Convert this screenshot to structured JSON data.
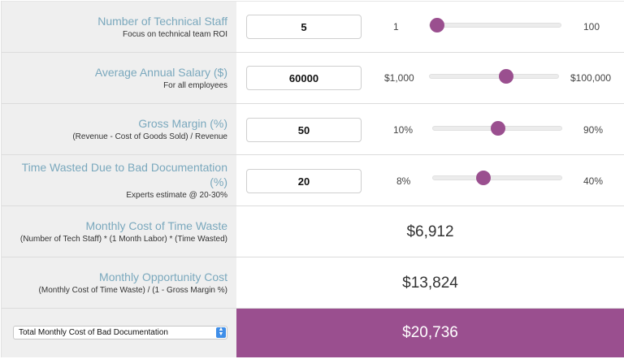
{
  "inputs": [
    {
      "title": "Number of Technical Staff",
      "subtitle": "Focus on technical team ROI",
      "value": "5",
      "min_label": "1",
      "max_label": "100",
      "slider_fraction": 0.0
    },
    {
      "title": "Average Annual Salary ($)",
      "subtitle": "For all employees",
      "value": "60000",
      "min_label": "$1,000",
      "max_label": "$100,000",
      "slider_fraction": 0.6
    },
    {
      "title": "Gross Margin (%)",
      "subtitle": "(Revenue - Cost of Goods Sold) / Revenue",
      "value": "50",
      "min_label": "10%",
      "max_label": "90%",
      "slider_fraction": 0.5
    },
    {
      "title": "Time Wasted Due to Bad Documentation (%)",
      "subtitle": "Experts estimate @ 20-30%",
      "value": "20",
      "min_label": "8%",
      "max_label": "40%",
      "slider_fraction": 0.375
    }
  ],
  "outputs": [
    {
      "title": "Monthly Cost of Time Waste",
      "subtitle": "(Number of Tech Staff) * (1 Month Labor) * (Time Wasted)",
      "value": "$6,912"
    },
    {
      "title": "Monthly Opportunity Cost",
      "subtitle": "(Monthly Cost of Time Waste) / (1 - Gross Margin %)",
      "value": "$13,824"
    }
  ],
  "total": {
    "selected_option": "Total Monthly Cost of Bad Documentation",
    "value": "$20,736"
  },
  "colors": {
    "accent": "#9a4f8f",
    "label_blue": "#7aa8bd",
    "panel_gray": "#efefef"
  }
}
